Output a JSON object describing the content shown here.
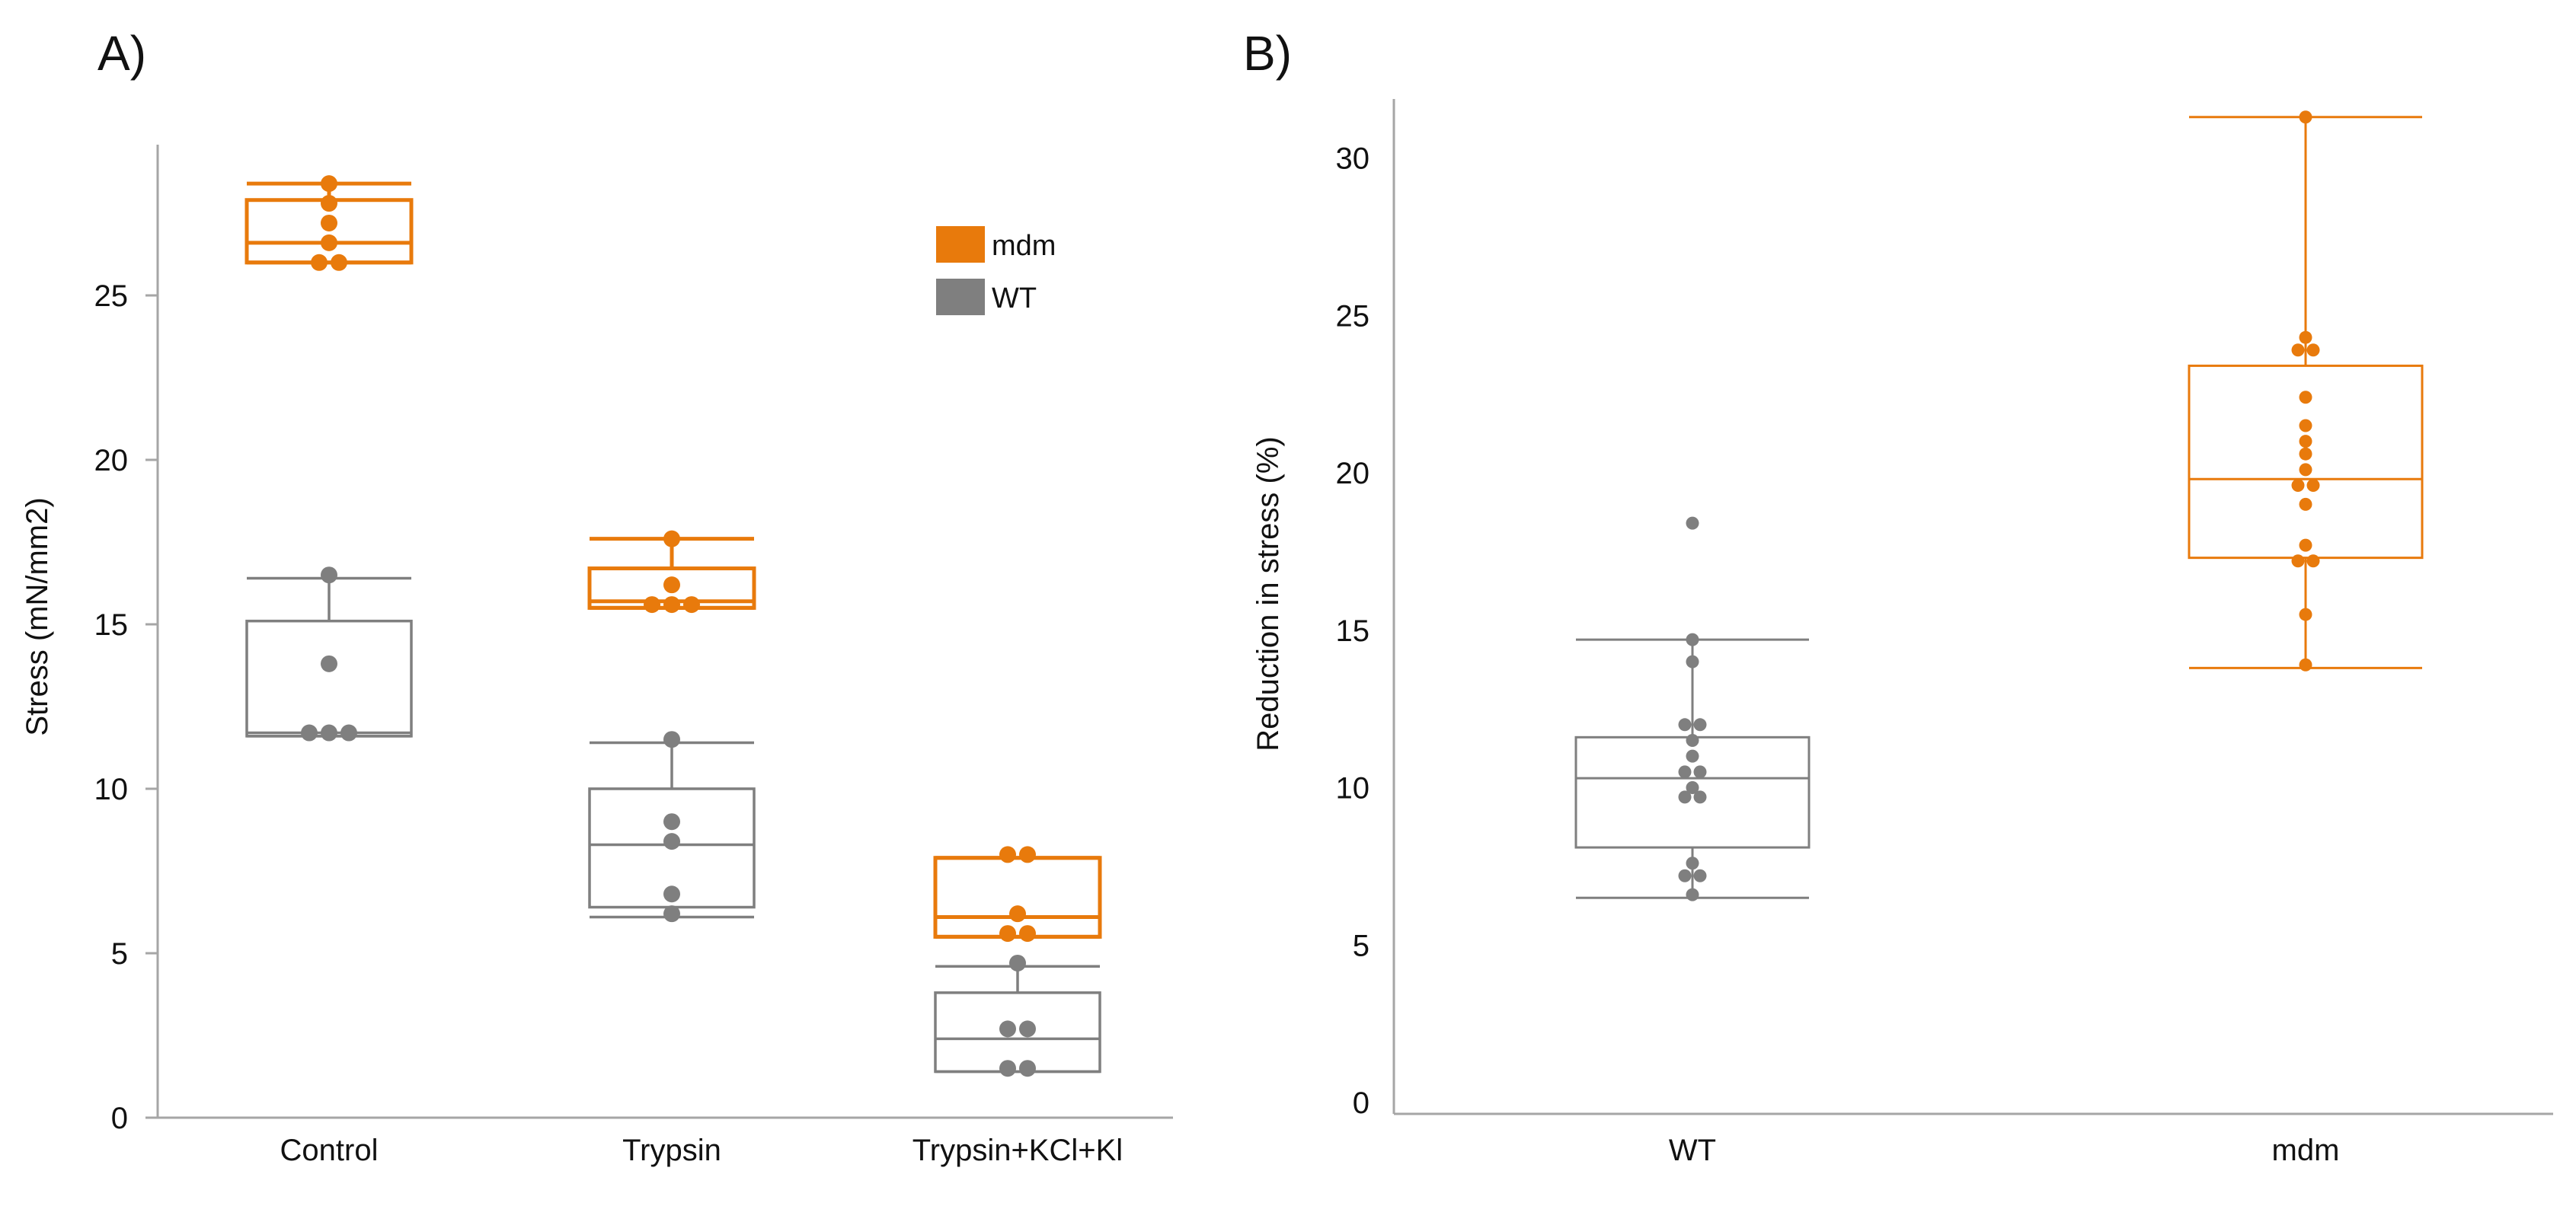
{
  "colors": {
    "mdm": "#E87A0C",
    "wt": "#7F7F7F",
    "axis": "#A6A6A6",
    "text": "#111111"
  },
  "chart_data": [
    {
      "panel_label": "A)",
      "type": "box",
      "title": "",
      "xlabel": "",
      "ylabel": "Stress (mN/mm2)",
      "ylim": [
        0,
        29.5
      ],
      "yticks": [
        "0",
        "5",
        "10",
        "15",
        "20",
        "25"
      ],
      "categories": [
        "Control",
        "Trypsin",
        "Trypsin+KCl+Kl"
      ],
      "legend": {
        "position": "top-right",
        "entries": [
          "mdm",
          "WT"
        ]
      },
      "series": [
        {
          "name": "mdm",
          "boxes": [
            {
              "min": 26.0,
              "q1": 26.0,
              "median": 26.6,
              "q3": 27.9,
              "max": 28.4,
              "points": [
                26.0,
                26.0,
                26.6,
                27.2,
                27.8,
                28.4
              ]
            },
            {
              "min": 15.5,
              "q1": 15.5,
              "median": 15.7,
              "q3": 16.7,
              "max": 17.6,
              "points": [
                15.6,
                15.6,
                15.6,
                16.2,
                17.6
              ]
            },
            {
              "min": 5.5,
              "q1": 5.5,
              "median": 6.1,
              "q3": 7.9,
              "max": 7.9,
              "points": [
                5.6,
                5.6,
                6.2,
                8.0,
                8.0
              ]
            }
          ]
        },
        {
          "name": "WT",
          "boxes": [
            {
              "min": 11.6,
              "q1": 11.6,
              "median": 11.7,
              "q3": 15.1,
              "max": 16.4,
              "points": [
                11.7,
                11.7,
                11.7,
                13.8,
                16.5
              ]
            },
            {
              "min": 6.1,
              "q1": 6.4,
              "median": 8.3,
              "q3": 10.0,
              "max": 11.4,
              "points": [
                6.2,
                6.8,
                8.4,
                9.0,
                11.5
              ]
            },
            {
              "min": 1.4,
              "q1": 1.4,
              "median": 2.4,
              "q3": 3.8,
              "max": 4.6,
              "points": [
                1.5,
                1.5,
                2.7,
                2.7,
                4.7
              ]
            }
          ]
        }
      ]
    },
    {
      "panel_label": "B)",
      "type": "box",
      "title": "",
      "xlabel": "",
      "ylabel": "Reduction in stress (%)",
      "ylim": [
        0,
        32.3
      ],
      "yticks": [
        "0",
        "5",
        "10",
        "15",
        "20",
        "25",
        "30"
      ],
      "categories": [
        "WT",
        "mdm"
      ],
      "series": [
        {
          "name": "WT",
          "box": {
            "min": 6.5,
            "q1": 8.1,
            "median": 10.3,
            "q3": 11.6,
            "max": 14.7,
            "outliers": [
              18.4
            ]
          },
          "points": [
            18.4,
            14.7,
            14.0,
            12.0,
            12.0,
            11.5,
            11.0,
            10.5,
            10.5,
            10.0,
            9.7,
            9.7,
            7.6,
            7.2,
            7.2,
            6.6
          ]
        },
        {
          "name": "mdm",
          "box": {
            "min": 13.8,
            "q1": 17.3,
            "median": 19.8,
            "q3": 23.4,
            "max": 31.3
          },
          "points": [
            31.3,
            24.3,
            23.9,
            23.9,
            22.4,
            21.5,
            21.0,
            20.6,
            20.1,
            19.6,
            19.6,
            19.0,
            17.7,
            17.2,
            17.2,
            15.5,
            13.9
          ]
        }
      ]
    }
  ]
}
